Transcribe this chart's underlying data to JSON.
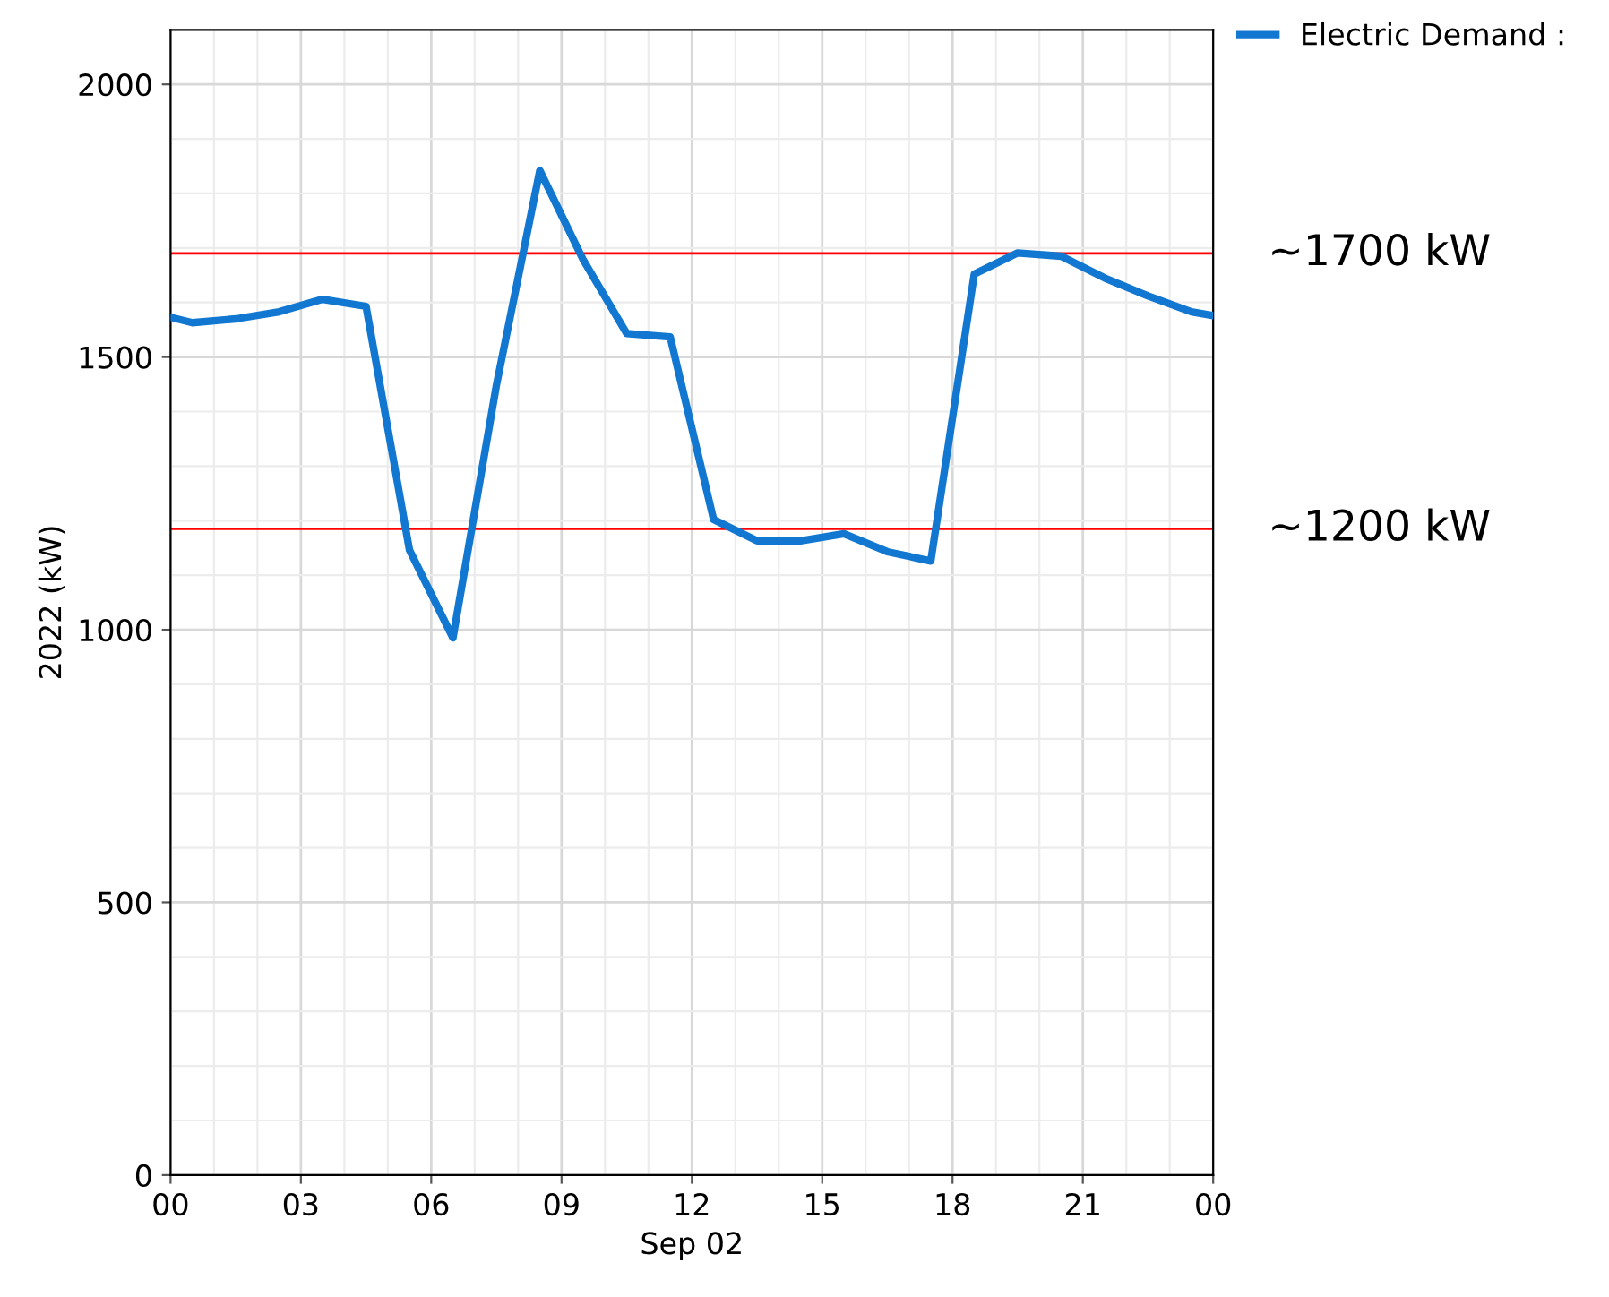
{
  "chart_data": {
    "type": "line",
    "xlabel": "Sep 02",
    "ylabel": "2022 (kW)",
    "xlim": [
      0,
      24
    ],
    "xticks": [
      {
        "value": 0,
        "label": "00"
      },
      {
        "value": 3,
        "label": "03"
      },
      {
        "value": 6,
        "label": "06"
      },
      {
        "value": 9,
        "label": "09"
      },
      {
        "value": 12,
        "label": "12"
      },
      {
        "value": 15,
        "label": "15"
      },
      {
        "value": 18,
        "label": "18"
      },
      {
        "value": 21,
        "label": "21"
      },
      {
        "value": 24,
        "label": "00"
      }
    ],
    "ylim": [
      0,
      2100
    ],
    "yticks": [
      0,
      500,
      1000,
      1500,
      2000
    ],
    "grid": true,
    "legend": "top right",
    "marker": "none",
    "line_style": "solid",
    "series": [
      {
        "name": "Electric Demand :",
        "color": "#1177d1",
        "x": [
          0,
          0.5,
          1.5,
          2.5,
          3.5,
          4.5,
          5.5,
          6.5,
          7.5,
          8.5,
          9.5,
          10.5,
          11.5,
          12.5,
          13.5,
          14.5,
          15.5,
          16.5,
          17.5,
          18.5,
          19.5,
          20.5,
          21.5,
          22.5,
          23.5,
          24
        ],
        "values": [
          1573,
          1563,
          1570,
          1583,
          1606,
          1593,
          1146,
          985,
          1448,
          1842,
          1678,
          1543,
          1537,
          1202,
          1163,
          1163,
          1176,
          1143,
          1126,
          1652,
          1691,
          1685,
          1645,
          1612,
          1583,
          1576
        ]
      }
    ],
    "ref_lines": [
      {
        "axis": "y",
        "value": 1690,
        "label": "~1700 kW",
        "color": "#ff0000"
      },
      {
        "axis": "y",
        "value": 1185,
        "label": "~1200 kW",
        "color": "#ff0000"
      }
    ]
  }
}
